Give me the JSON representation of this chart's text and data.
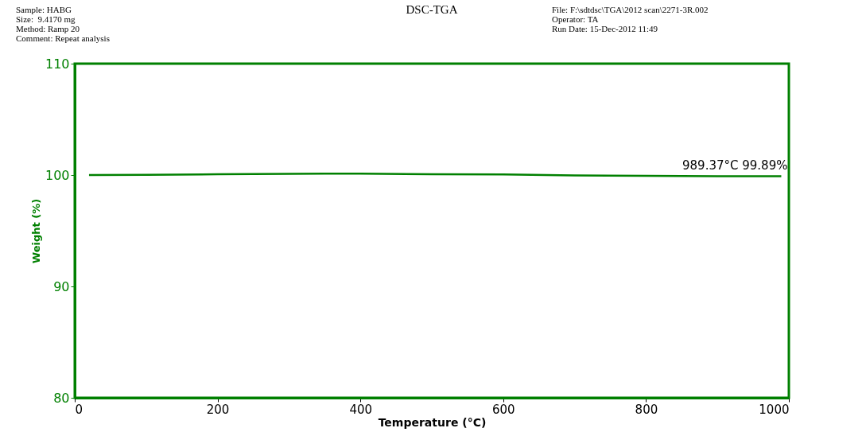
{
  "chart_data": {
    "type": "line",
    "title": "DSC-TGA",
    "xlabel": "Temperature (°C)",
    "ylabel": "Weight (%)",
    "annotations": [
      "Sample: HABG\nSize:  9.4170 mg\nMethod: Ramp 20\nComment: Repeat analysis",
      "File: F:\\sdtdsc\\TGA\\2012 scan\\2271-3R.002\nOperator: TA\nRun Date: 15-Dec-2012 11:49",
      {
        "text": "989.37°C 99.89%",
        "x": 989.37,
        "y": 99.89
      }
    ],
    "series": [
      {
        "color": "#008000",
        "x": [
          20,
          100,
          200,
          300,
          350,
          400,
          500,
          600,
          700,
          800,
          900,
          989.37
        ],
        "values": [
          100.0,
          100.02,
          100.07,
          100.1,
          100.12,
          100.12,
          100.08,
          100.05,
          99.97,
          99.92,
          99.9,
          99.89
        ]
      }
    ],
    "xlim": [
      0,
      1000
    ],
    "xticks": [
      0,
      200,
      400,
      600,
      800,
      1000
    ],
    "ylim": [
      80,
      110
    ],
    "yticks": [
      80,
      90,
      100,
      110
    ],
    "grid": false,
    "marker": "none",
    "line_style": "solid"
  }
}
